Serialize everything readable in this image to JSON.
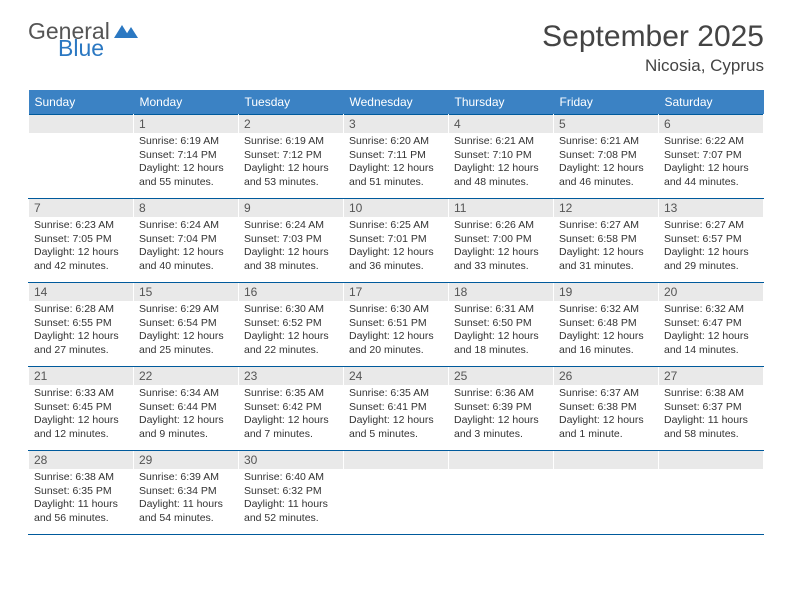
{
  "logo": {
    "text1": "General",
    "text2": "Blue",
    "flag_color": "#2b78c2"
  },
  "header": {
    "title": "September 2025",
    "location": "Nicosia, Cyprus"
  },
  "colors": {
    "header_row_bg": "#3b82c4",
    "header_row_text": "#ffffff",
    "cell_border": "#005a9c",
    "daynum_bg": "#e9e9e9"
  },
  "weekdays": [
    "Sunday",
    "Monday",
    "Tuesday",
    "Wednesday",
    "Thursday",
    "Friday",
    "Saturday"
  ],
  "weeks": [
    [
      {
        "blank": true
      },
      {
        "day": "1",
        "sunrise": "Sunrise: 6:19 AM",
        "sunset": "Sunset: 7:14 PM",
        "daylight": "Daylight: 12 hours and 55 minutes."
      },
      {
        "day": "2",
        "sunrise": "Sunrise: 6:19 AM",
        "sunset": "Sunset: 7:12 PM",
        "daylight": "Daylight: 12 hours and 53 minutes."
      },
      {
        "day": "3",
        "sunrise": "Sunrise: 6:20 AM",
        "sunset": "Sunset: 7:11 PM",
        "daylight": "Daylight: 12 hours and 51 minutes."
      },
      {
        "day": "4",
        "sunrise": "Sunrise: 6:21 AM",
        "sunset": "Sunset: 7:10 PM",
        "daylight": "Daylight: 12 hours and 48 minutes."
      },
      {
        "day": "5",
        "sunrise": "Sunrise: 6:21 AM",
        "sunset": "Sunset: 7:08 PM",
        "daylight": "Daylight: 12 hours and 46 minutes."
      },
      {
        "day": "6",
        "sunrise": "Sunrise: 6:22 AM",
        "sunset": "Sunset: 7:07 PM",
        "daylight": "Daylight: 12 hours and 44 minutes."
      }
    ],
    [
      {
        "day": "7",
        "sunrise": "Sunrise: 6:23 AM",
        "sunset": "Sunset: 7:05 PM",
        "daylight": "Daylight: 12 hours and 42 minutes."
      },
      {
        "day": "8",
        "sunrise": "Sunrise: 6:24 AM",
        "sunset": "Sunset: 7:04 PM",
        "daylight": "Daylight: 12 hours and 40 minutes."
      },
      {
        "day": "9",
        "sunrise": "Sunrise: 6:24 AM",
        "sunset": "Sunset: 7:03 PM",
        "daylight": "Daylight: 12 hours and 38 minutes."
      },
      {
        "day": "10",
        "sunrise": "Sunrise: 6:25 AM",
        "sunset": "Sunset: 7:01 PM",
        "daylight": "Daylight: 12 hours and 36 minutes."
      },
      {
        "day": "11",
        "sunrise": "Sunrise: 6:26 AM",
        "sunset": "Sunset: 7:00 PM",
        "daylight": "Daylight: 12 hours and 33 minutes."
      },
      {
        "day": "12",
        "sunrise": "Sunrise: 6:27 AM",
        "sunset": "Sunset: 6:58 PM",
        "daylight": "Daylight: 12 hours and 31 minutes."
      },
      {
        "day": "13",
        "sunrise": "Sunrise: 6:27 AM",
        "sunset": "Sunset: 6:57 PM",
        "daylight": "Daylight: 12 hours and 29 minutes."
      }
    ],
    [
      {
        "day": "14",
        "sunrise": "Sunrise: 6:28 AM",
        "sunset": "Sunset: 6:55 PM",
        "daylight": "Daylight: 12 hours and 27 minutes."
      },
      {
        "day": "15",
        "sunrise": "Sunrise: 6:29 AM",
        "sunset": "Sunset: 6:54 PM",
        "daylight": "Daylight: 12 hours and 25 minutes."
      },
      {
        "day": "16",
        "sunrise": "Sunrise: 6:30 AM",
        "sunset": "Sunset: 6:52 PM",
        "daylight": "Daylight: 12 hours and 22 minutes."
      },
      {
        "day": "17",
        "sunrise": "Sunrise: 6:30 AM",
        "sunset": "Sunset: 6:51 PM",
        "daylight": "Daylight: 12 hours and 20 minutes."
      },
      {
        "day": "18",
        "sunrise": "Sunrise: 6:31 AM",
        "sunset": "Sunset: 6:50 PM",
        "daylight": "Daylight: 12 hours and 18 minutes."
      },
      {
        "day": "19",
        "sunrise": "Sunrise: 6:32 AM",
        "sunset": "Sunset: 6:48 PM",
        "daylight": "Daylight: 12 hours and 16 minutes."
      },
      {
        "day": "20",
        "sunrise": "Sunrise: 6:32 AM",
        "sunset": "Sunset: 6:47 PM",
        "daylight": "Daylight: 12 hours and 14 minutes."
      }
    ],
    [
      {
        "day": "21",
        "sunrise": "Sunrise: 6:33 AM",
        "sunset": "Sunset: 6:45 PM",
        "daylight": "Daylight: 12 hours and 12 minutes."
      },
      {
        "day": "22",
        "sunrise": "Sunrise: 6:34 AM",
        "sunset": "Sunset: 6:44 PM",
        "daylight": "Daylight: 12 hours and 9 minutes."
      },
      {
        "day": "23",
        "sunrise": "Sunrise: 6:35 AM",
        "sunset": "Sunset: 6:42 PM",
        "daylight": "Daylight: 12 hours and 7 minutes."
      },
      {
        "day": "24",
        "sunrise": "Sunrise: 6:35 AM",
        "sunset": "Sunset: 6:41 PM",
        "daylight": "Daylight: 12 hours and 5 minutes."
      },
      {
        "day": "25",
        "sunrise": "Sunrise: 6:36 AM",
        "sunset": "Sunset: 6:39 PM",
        "daylight": "Daylight: 12 hours and 3 minutes."
      },
      {
        "day": "26",
        "sunrise": "Sunrise: 6:37 AM",
        "sunset": "Sunset: 6:38 PM",
        "daylight": "Daylight: 12 hours and 1 minute."
      },
      {
        "day": "27",
        "sunrise": "Sunrise: 6:38 AM",
        "sunset": "Sunset: 6:37 PM",
        "daylight": "Daylight: 11 hours and 58 minutes."
      }
    ],
    [
      {
        "day": "28",
        "sunrise": "Sunrise: 6:38 AM",
        "sunset": "Sunset: 6:35 PM",
        "daylight": "Daylight: 11 hours and 56 minutes."
      },
      {
        "day": "29",
        "sunrise": "Sunrise: 6:39 AM",
        "sunset": "Sunset: 6:34 PM",
        "daylight": "Daylight: 11 hours and 54 minutes."
      },
      {
        "day": "30",
        "sunrise": "Sunrise: 6:40 AM",
        "sunset": "Sunset: 6:32 PM",
        "daylight": "Daylight: 11 hours and 52 minutes."
      },
      {
        "blank": true
      },
      {
        "blank": true
      },
      {
        "blank": true
      },
      {
        "blank": true
      }
    ]
  ]
}
